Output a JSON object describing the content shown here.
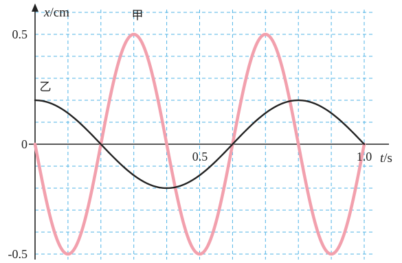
{
  "chart_data": {
    "type": "line",
    "x_axis": {
      "label_var": "t",
      "label_unit": "/s",
      "ticks": [
        "0.5",
        "1.0"
      ],
      "range": [
        0,
        1.0
      ]
    },
    "y_axis": {
      "label_var": "x",
      "label_unit": "/cm",
      "ticks": [
        "0.5",
        "0",
        "-0.5"
      ],
      "range": [
        -0.5,
        0.5
      ]
    },
    "grid": true,
    "series": [
      {
        "name": "甲",
        "color": "#f2a0ad",
        "function": "x = -0.5·sin(2πt/0.4)",
        "amplitude": 0.5,
        "period": 0.4,
        "x": [
          0,
          0.1,
          0.2,
          0.3,
          0.4,
          0.5,
          0.6,
          0.7,
          0.8,
          0.9,
          1.0
        ],
        "y": [
          0,
          -0.5,
          0,
          0.5,
          0,
          -0.5,
          0,
          0.5,
          0,
          -0.5,
          0
        ]
      },
      {
        "name": "乙",
        "color": "#222222",
        "function": "x = 0.2·cos(2πt/0.8)",
        "amplitude": 0.2,
        "period": 0.8,
        "x": [
          0,
          0.2,
          0.4,
          0.6,
          0.8,
          1.0
        ],
        "y": [
          0.2,
          0,
          -0.2,
          0,
          0.2,
          0
        ]
      }
    ]
  }
}
